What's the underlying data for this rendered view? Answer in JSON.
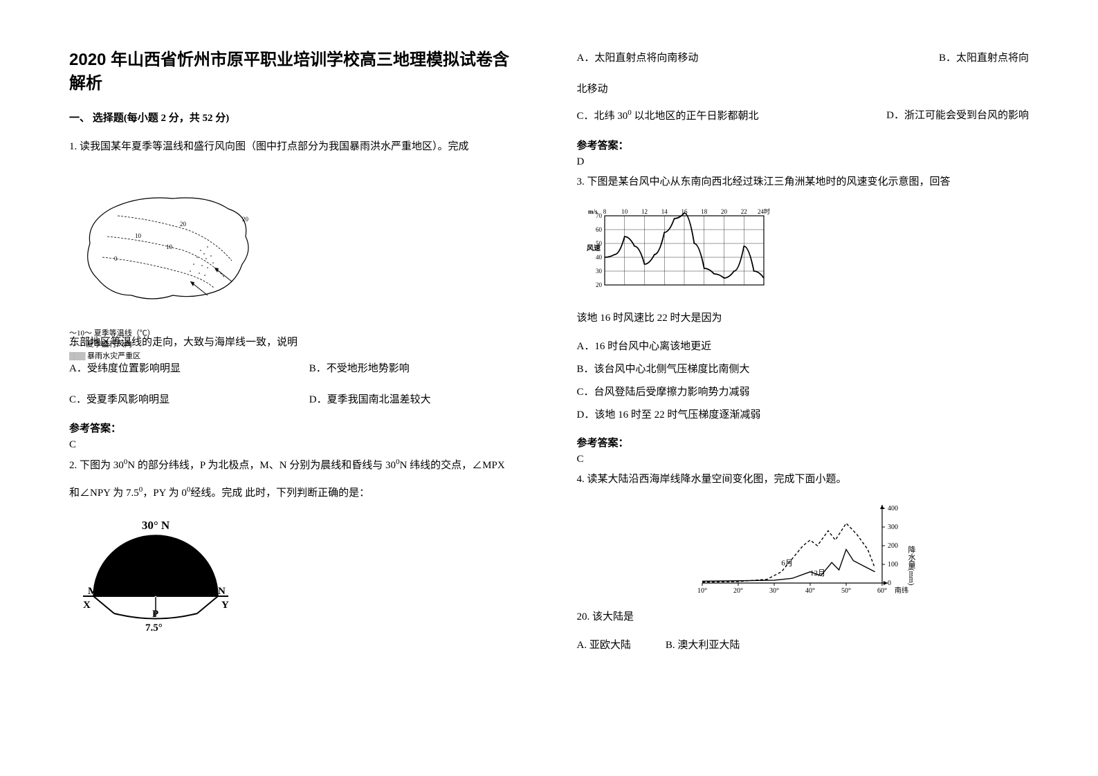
{
  "title": "2020 年山西省忻州市原平职业培训学校高三地理模拟试卷含解析",
  "section1": "一、 选择题(每小题 2 分，共 52 分)",
  "q1": {
    "stem": "1. 读我国某年夏季等温线和盛行风向图（图中打点部分为我国暴雨洪水严重地区）。完成",
    "legend1": "～10～ 夏季等温线（℃）",
    "legend2": "—→ 夏季盛行风向",
    "legend3": "▒▒▒ 暴雨水灾严重区",
    "sub": "东部地区等温线的走向，大致与海岸线一致，说明",
    "A": "A．受纬度位置影响明显",
    "B": "B．不受地形地势影响",
    "C": "C．受夏季风影响明显",
    "D": "D．夏季我国南北温差较大",
    "ans_label": "参考答案：",
    "ans": "C"
  },
  "q2": {
    "stem_a": "2. 下图为 30",
    "stem_b": "N 的部分纬线，P 为北极点，M、N 分别为晨线和昏线与 30",
    "stem_c": "N 纬线的交点，∠MPX",
    "line2_a": "和∠NPY 为 7.5",
    "line2_b": "，PY 为 0",
    "line2_c": "经线。完成  此时，下列判断正确的是：",
    "fig_label_top": "30° N",
    "fig_M": "M",
    "fig_N": "N",
    "fig_X": "X",
    "fig_Y": "Y",
    "fig_P": "P",
    "fig_angle": "7.5°",
    "A": "A．太阳直射点将向南移动",
    "B": "B．太阳直射点将向",
    "B2": "北移动",
    "C": "C．北纬 30",
    "C2": " 以北地区的正午日影都朝北",
    "D": "D．浙江可能会受到台风的影响",
    "ans_label": "参考答案：",
    "ans": "D"
  },
  "q3": {
    "stem": "3. 下图是某台风中心从东南向西北经过珠江三角洲某地时的风速变化示意图，回答",
    "x_unit": "m/s",
    "x_ticks": [
      "8",
      "10",
      "12",
      "14",
      "16",
      "18",
      "20",
      "22",
      "24时"
    ],
    "y_ticks": [
      "20",
      "30",
      "40",
      "50",
      "60",
      "70"
    ],
    "y_label": "风速",
    "line_points": [
      [
        8,
        40
      ],
      [
        9,
        42
      ],
      [
        10,
        55
      ],
      [
        11,
        48
      ],
      [
        12,
        35
      ],
      [
        13,
        42
      ],
      [
        14,
        58
      ],
      [
        15,
        68
      ],
      [
        16,
        72
      ],
      [
        17,
        50
      ],
      [
        18,
        32
      ],
      [
        19,
        28
      ],
      [
        20,
        25
      ],
      [
        21,
        30
      ],
      [
        22,
        48
      ],
      [
        23,
        30
      ],
      [
        24,
        25
      ]
    ],
    "sub": "该地 16 时风速比 22 时大是因为",
    "A": "A．16 时台风中心离该地更近",
    "B": "B．该台风中心北侧气压梯度比南侧大",
    "C": "C．台风登陆后受摩擦力影响势力减弱",
    "D": "D．该地 16 时至 22 时气压梯度逐渐减弱",
    "ans_label": "参考答案：",
    "ans": "C"
  },
  "q4": {
    "stem": "4. 读某大陆沿西海岸线降水量空间变化图，完成下面小题。",
    "x_ticks": [
      "10°",
      "20°",
      "30°",
      "40°",
      "50°",
      "60°"
    ],
    "x_suffix": "南纬",
    "y_ticks": [
      "0",
      "100",
      "200",
      "300",
      "400"
    ],
    "y_label": "降水量(mm)",
    "label1": "6月",
    "label2": "12月",
    "sub_num": "20.",
    "sub": " 该大陆是",
    "A": "A. 亚欧大陆",
    "B": "B. 澳大利亚大陆"
  }
}
